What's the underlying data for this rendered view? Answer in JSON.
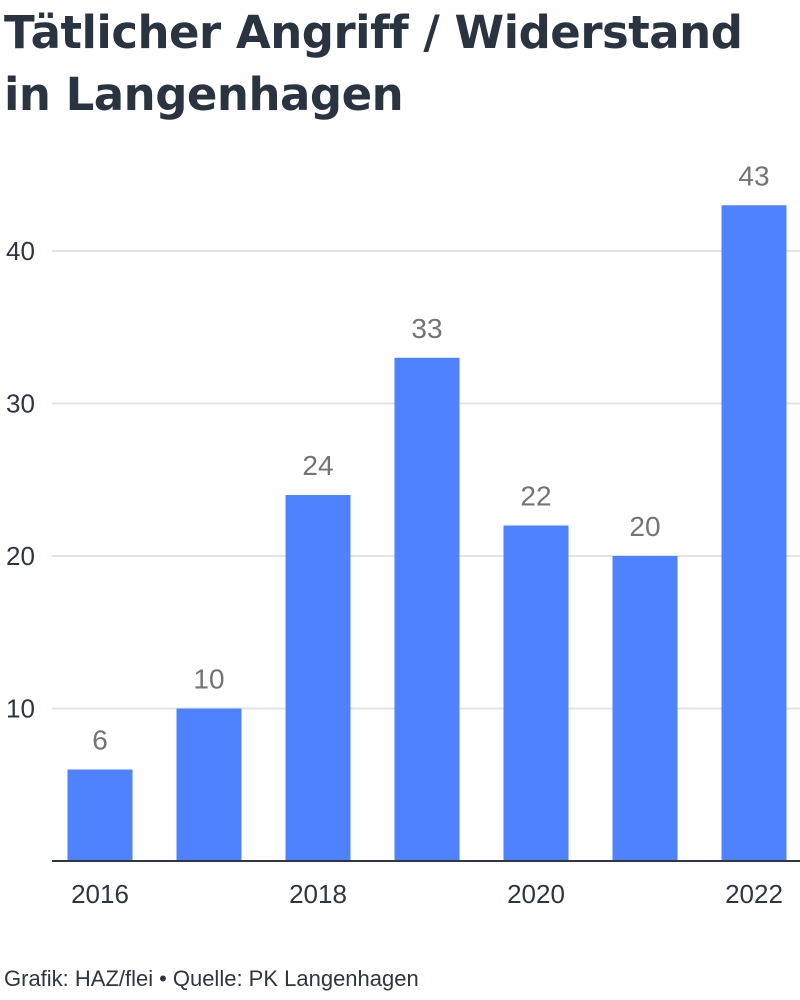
{
  "chart_data": {
    "type": "bar",
    "title": "Tätlicher Angriff / Widerstand in Langenhagen",
    "categories": [
      "2016",
      "2017",
      "2018",
      "2019",
      "2020",
      "2021",
      "2022"
    ],
    "values": [
      6,
      10,
      24,
      33,
      22,
      20,
      43
    ],
    "x_tick_labels": [
      "2016",
      "2018",
      "2020",
      "2022"
    ],
    "y_ticks": [
      10,
      20,
      30,
      40
    ],
    "ylim": [
      0,
      45
    ],
    "grid": true,
    "bar_color": "#4f82ff",
    "xlabel": "",
    "ylabel": ""
  },
  "footer": {
    "credit": "Grafik: HAZ/flei",
    "separator": "•",
    "source": "Quelle: PK Langenhagen"
  }
}
